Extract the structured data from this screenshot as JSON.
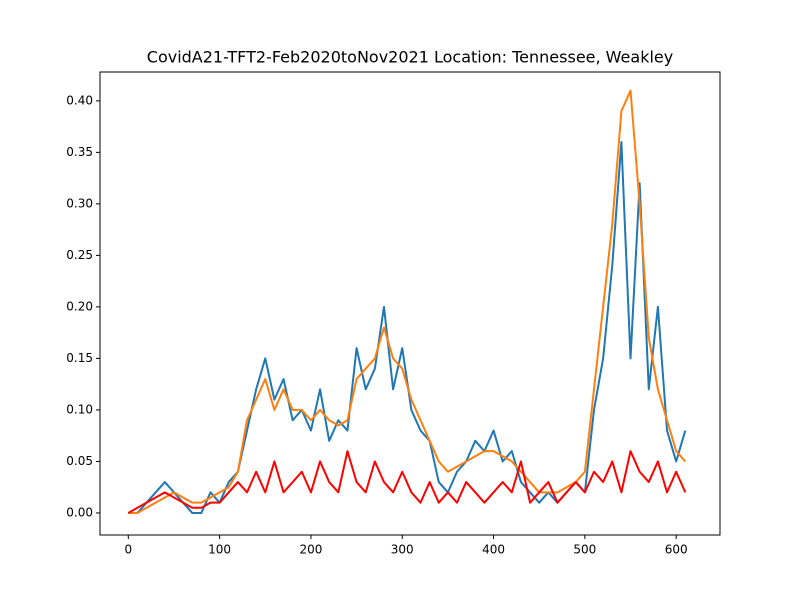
{
  "chart_data": {
    "type": "line",
    "title": "CovidA21-TFT2-Feb2020toNov2021 Location: Tennessee, Weakley",
    "x": [
      0,
      10,
      20,
      30,
      40,
      50,
      60,
      70,
      80,
      90,
      100,
      110,
      120,
      130,
      140,
      150,
      160,
      170,
      180,
      190,
      200,
      210,
      220,
      230,
      240,
      250,
      260,
      270,
      280,
      290,
      300,
      310,
      320,
      330,
      340,
      350,
      360,
      370,
      380,
      390,
      400,
      410,
      420,
      430,
      440,
      450,
      460,
      470,
      480,
      490,
      500,
      510,
      520,
      530,
      540,
      550,
      560,
      570,
      580,
      590,
      600,
      610
    ],
    "series": [
      {
        "color": "#1f77b4",
        "values": [
          0,
          0,
          0.01,
          0.02,
          0.03,
          0.02,
          0.01,
          0,
          0,
          0.02,
          0.01,
          0.03,
          0.04,
          0.08,
          0.12,
          0.15,
          0.11,
          0.13,
          0.09,
          0.1,
          0.08,
          0.12,
          0.07,
          0.09,
          0.08,
          0.16,
          0.12,
          0.14,
          0.2,
          0.12,
          0.16,
          0.1,
          0.08,
          0.07,
          0.03,
          0.02,
          0.04,
          0.05,
          0.07,
          0.06,
          0.08,
          0.05,
          0.06,
          0.03,
          0.02,
          0.01,
          0.02,
          0.01,
          0.02,
          0.03,
          0.02,
          0.1,
          0.15,
          0.24,
          0.36,
          0.15,
          0.32,
          0.12,
          0.2,
          0.08,
          0.05,
          0.08
        ]
      },
      {
        "color": "#ff7f0e",
        "values": [
          0,
          0,
          0.005,
          0.01,
          0.015,
          0.02,
          0.015,
          0.01,
          0.01,
          0.015,
          0.02,
          0.025,
          0.04,
          0.09,
          0.11,
          0.13,
          0.1,
          0.12,
          0.1,
          0.1,
          0.09,
          0.1,
          0.09,
          0.085,
          0.09,
          0.13,
          0.14,
          0.15,
          0.18,
          0.15,
          0.14,
          0.11,
          0.09,
          0.07,
          0.05,
          0.04,
          0.045,
          0.05,
          0.055,
          0.06,
          0.06,
          0.055,
          0.05,
          0.04,
          0.03,
          0.02,
          0.02,
          0.02,
          0.025,
          0.03,
          0.04,
          0.12,
          0.2,
          0.28,
          0.39,
          0.41,
          0.3,
          0.17,
          0.12,
          0.09,
          0.06,
          0.05
        ]
      },
      {
        "color": "#ff0000",
        "values": [
          0,
          0.005,
          0.01,
          0.015,
          0.02,
          0.015,
          0.01,
          0.005,
          0.005,
          0.01,
          0.01,
          0.02,
          0.03,
          0.02,
          0.04,
          0.02,
          0.05,
          0.02,
          0.03,
          0.04,
          0.02,
          0.05,
          0.03,
          0.02,
          0.06,
          0.03,
          0.02,
          0.05,
          0.03,
          0.02,
          0.04,
          0.02,
          0.01,
          0.03,
          0.01,
          0.02,
          0.01,
          0.03,
          0.02,
          0.01,
          0.02,
          0.03,
          0.02,
          0.05,
          0.01,
          0.02,
          0.03,
          0.01,
          0.02,
          0.03,
          0.02,
          0.04,
          0.03,
          0.05,
          0.02,
          0.06,
          0.04,
          0.03,
          0.05,
          0.02,
          0.04,
          0.02
        ]
      }
    ],
    "xlim": [
      -31,
      648
    ],
    "xticks": [
      0,
      100,
      200,
      300,
      400,
      500,
      600
    ],
    "ylim": [
      -0.0214,
      0.428
    ],
    "yticks": [
      {
        "value": 0,
        "label": "0.00"
      },
      {
        "value": 0.05,
        "label": "0.05"
      },
      {
        "value": 0.1,
        "label": "0.10"
      },
      {
        "value": 0.15,
        "label": "0.15"
      },
      {
        "value": 0.2,
        "label": "0.20"
      },
      {
        "value": 0.25,
        "label": "0.25"
      },
      {
        "value": 0.3,
        "label": "0.30"
      },
      {
        "value": 0.35,
        "label": "0.35"
      },
      {
        "value": 0.4,
        "label": "0.40"
      }
    ]
  }
}
